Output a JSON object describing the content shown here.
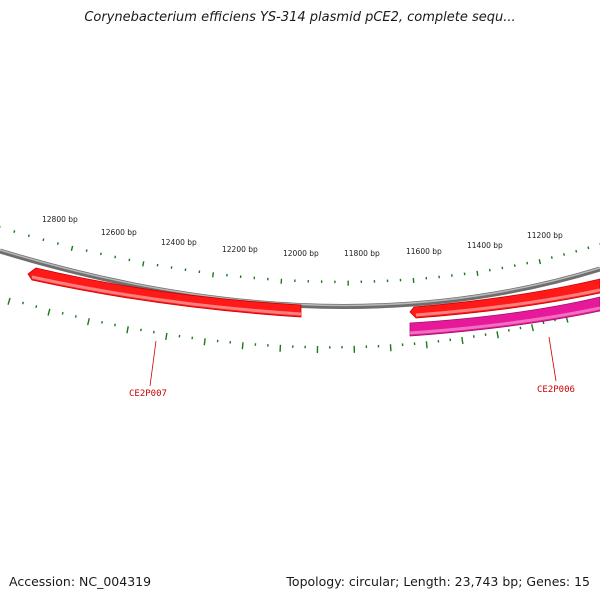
{
  "title": "Corynebacterium efficiens YS-314 plasmid pCE2, complete sequ...",
  "footer": {
    "accession": "Accession: NC_004319",
    "summary": "Topology: circular; Length: 23,743 bp; Genes: 15"
  },
  "map": {
    "tick_labels": [
      "12800 bp",
      "12600 bp",
      "12400 bp",
      "12200 bp",
      "12000 bp",
      "11800 bp",
      "11600 bp",
      "11400 bp",
      "11200 bp"
    ],
    "genes": [
      {
        "name": "CE2P007",
        "color": "#ff0000"
      },
      {
        "name": "CE2P006",
        "color": "#e8189a"
      }
    ],
    "colors": {
      "backbone": "#808080",
      "ticks": "#1a7a1a",
      "gene_forward": "#ff0000",
      "gene_reverse": "#e8189a",
      "label": "#cc0000"
    }
  }
}
